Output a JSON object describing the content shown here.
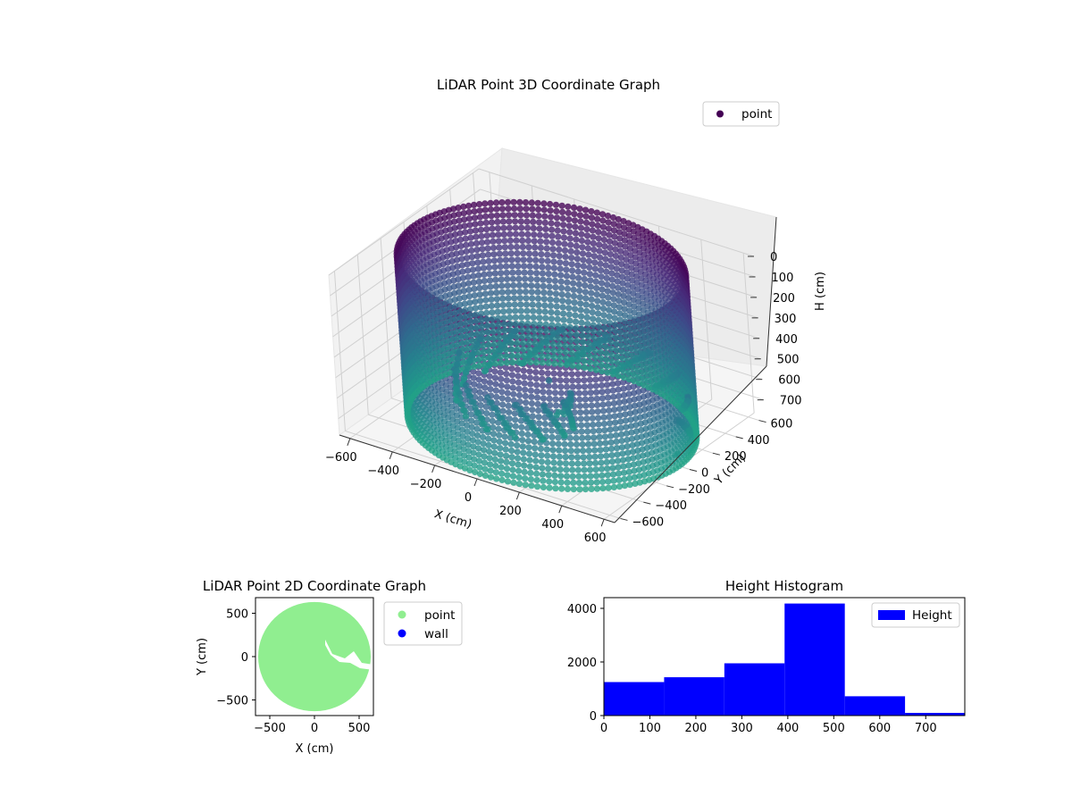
{
  "colors": {
    "wall_start": "#440154",
    "wall_mid": "#3b528b",
    "wall_low": "#21918c",
    "scatter2d_point": "#90ee90",
    "scatter2d_wall": "#0000ff",
    "histogram": "#0000ff",
    "pane": "#f2f2f2",
    "grid": "#d0d0d0"
  },
  "chart_data": [
    {
      "type": "scatter",
      "projection": "3d",
      "title": "LiDAR Point 3D Coordinate Graph",
      "xlabel": "X (cm)",
      "ylabel": "Y (cm)",
      "zlabel": "H (cm)",
      "xticks": [
        "−600",
        "−400",
        "−200",
        "0",
        "200",
        "400",
        "600"
      ],
      "yticks": [
        "−600",
        "−400",
        "−200",
        "0",
        "200",
        "400",
        "600"
      ],
      "zticks": [
        "0",
        "100",
        "200",
        "300",
        "400",
        "500",
        "600",
        "700"
      ],
      "xlim": [
        -650,
        650
      ],
      "ylim": [
        -650,
        650
      ],
      "zlim": [
        0,
        780
      ],
      "z_inverted": true,
      "colormap": "viridis",
      "grid": true,
      "legend": [
        {
          "label": "point",
          "color": "#440154"
        }
      ],
      "legend_position": "upper-right",
      "series": [
        {
          "name": "point",
          "shape": "cylindrical wall of points",
          "radius": 600,
          "height_range": [
            0,
            780
          ]
        }
      ]
    },
    {
      "type": "scatter",
      "title": "LiDAR Point 2D Coordinate Graph",
      "xlabel": "X (cm)",
      "ylabel": "Y (cm)",
      "xticks": [
        "−500",
        "0",
        "500"
      ],
      "yticks": [
        "−500",
        "0",
        "500"
      ],
      "xlim": [
        -660,
        660
      ],
      "ylim": [
        -680,
        680
      ],
      "legend": [
        {
          "label": "point",
          "color": "#90ee90"
        },
        {
          "label": "wall",
          "color": "#0000ff"
        }
      ],
      "legend_position": "outside-right",
      "series": [
        {
          "name": "point",
          "shape": "filled disk",
          "radius": 630
        },
        {
          "name": "wall",
          "shape": "none visible"
        }
      ]
    },
    {
      "type": "bar",
      "subtype": "histogram",
      "title": "Height Histogram",
      "xticks": [
        "0",
        "100",
        "200",
        "300",
        "400",
        "500",
        "600",
        "700"
      ],
      "yticks": [
        "0",
        "2000",
        "4000"
      ],
      "xlim": [
        0,
        785
      ],
      "ylim": [
        0,
        4400
      ],
      "legend": [
        {
          "label": "Height",
          "color": "#0000ff"
        }
      ],
      "legend_position": "upper-right",
      "bin_edges": [
        0,
        131,
        262,
        393,
        524,
        655,
        785
      ],
      "values": [
        1250,
        1430,
        1950,
        4180,
        720,
        100
      ]
    }
  ]
}
